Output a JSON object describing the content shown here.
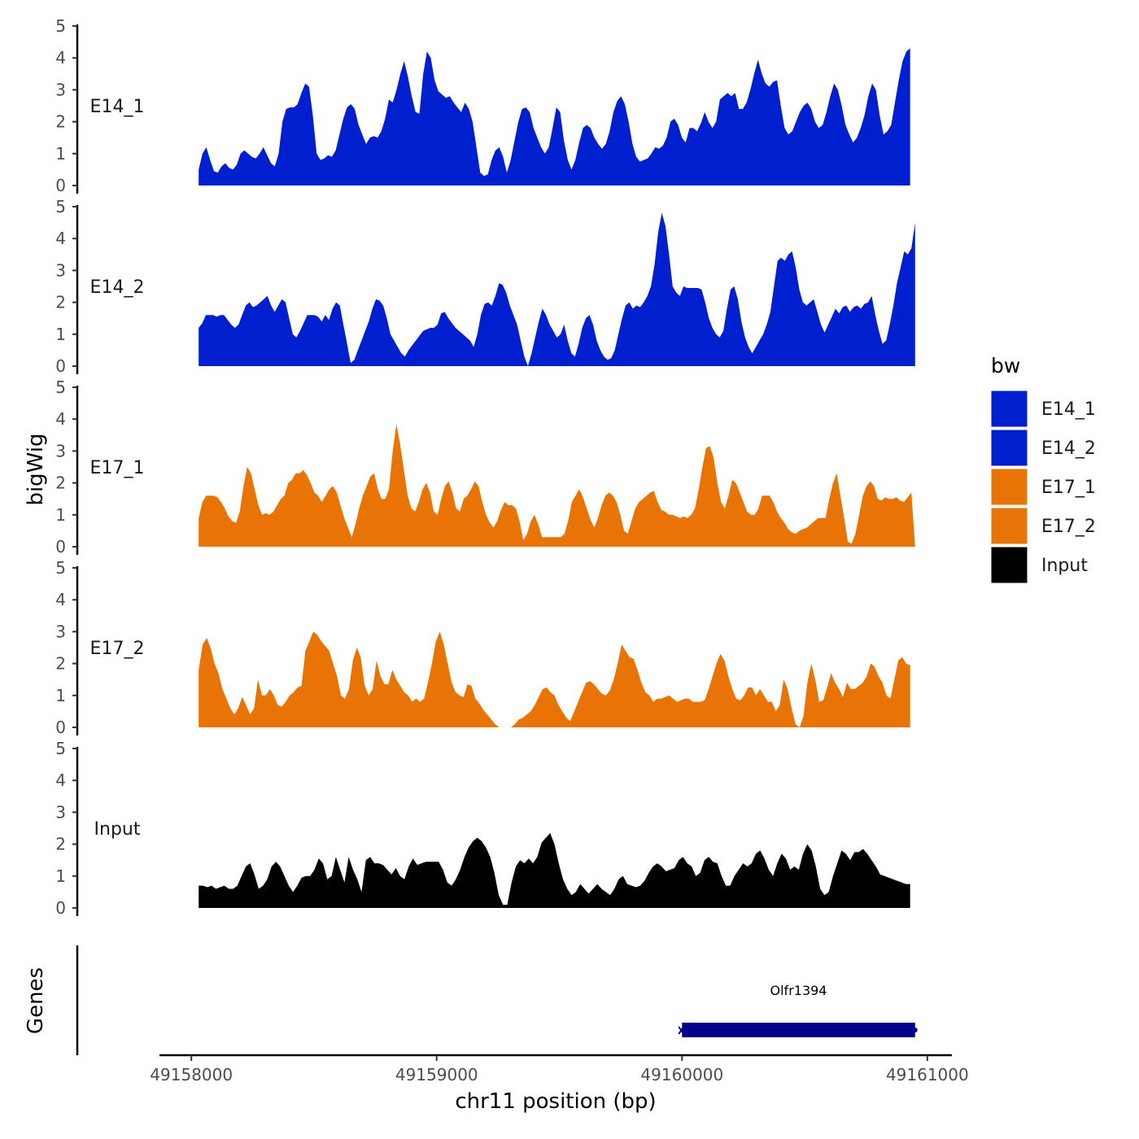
{
  "chart_data": {
    "type": "area",
    "title": "",
    "ylabel": "bigWig",
    "xlabel": "chr11 position (bp)",
    "xlim": [
      49157870,
      49161100
    ],
    "ylim": [
      0,
      5
    ],
    "x_ticks": [
      49158000,
      49159000,
      49160000,
      49161000
    ],
    "x_tick_labels": [
      "49158000",
      "49159000",
      "49160000",
      "49161000"
    ],
    "y_ticks": [
      0,
      1,
      2,
      3,
      4,
      5
    ],
    "y_tick_labels": [
      "0",
      "1",
      "2",
      "3",
      "4",
      "5"
    ],
    "legend": {
      "title": "bw",
      "position": "right",
      "entries": [
        {
          "name": "E14_1",
          "color": "#0020D0"
        },
        {
          "name": "E14_2",
          "color": "#0020D0"
        },
        {
          "name": "E17_1",
          "color": "#E87405"
        },
        {
          "name": "E17_2",
          "color": "#E87405"
        },
        {
          "name": "Input",
          "color": "#000000"
        }
      ]
    },
    "series": [
      {
        "name": "E14_1",
        "color": "#0020D0",
        "x_start": 49158030,
        "x_end": 49160930,
        "values": [
          0.5,
          1.0,
          1.2,
          0.8,
          0.45,
          0.4,
          0.6,
          0.7,
          0.55,
          0.5,
          0.65,
          1.0,
          1.1,
          1.0,
          0.9,
          0.85,
          1.0,
          1.2,
          0.95,
          0.7,
          0.6,
          1.0,
          2.0,
          2.4,
          2.45,
          2.45,
          2.55,
          2.9,
          3.2,
          3.1,
          2.2,
          1.0,
          0.8,
          0.85,
          0.95,
          0.9,
          1.1,
          1.6,
          2.1,
          2.45,
          2.55,
          2.4,
          1.9,
          1.6,
          1.3,
          1.5,
          1.55,
          1.5,
          1.7,
          2.1,
          2.7,
          2.6,
          3.0,
          3.5,
          3.9,
          3.4,
          2.8,
          2.3,
          2.25,
          3.5,
          4.2,
          4.0,
          3.3,
          2.95,
          2.85,
          2.75,
          2.8,
          2.6,
          2.45,
          2.3,
          2.6,
          2.4,
          2.0,
          1.2,
          0.4,
          0.3,
          0.35,
          0.8,
          1.1,
          1.2,
          0.9,
          0.4,
          0.8,
          1.4,
          2.0,
          2.4,
          2.45,
          2.3,
          1.8,
          1.5,
          1.2,
          1.0,
          1.2,
          1.8,
          2.45,
          2.3,
          1.4,
          0.8,
          0.5,
          0.8,
          1.35,
          1.8,
          1.9,
          1.8,
          1.5,
          1.3,
          1.15,
          1.3,
          1.7,
          2.3,
          2.65,
          2.8,
          2.55,
          2.0,
          1.3,
          0.9,
          0.75,
          0.8,
          0.85,
          1.0,
          1.2,
          1.15,
          1.25,
          1.5,
          2.0,
          2.1,
          1.9,
          1.5,
          1.35,
          1.8,
          1.8,
          1.7,
          1.95,
          2.3,
          2.0,
          1.8,
          2.0,
          2.7,
          2.8,
          2.9,
          2.8,
          2.9,
          2.4,
          2.4,
          2.6,
          3.0,
          3.5,
          3.95,
          3.5,
          3.2,
          3.1,
          3.25,
          3.3,
          2.5,
          1.8,
          1.6,
          1.7,
          2.0,
          2.3,
          2.5,
          2.6,
          2.4,
          2.0,
          1.8,
          1.9,
          2.3,
          2.8,
          3.2,
          3.0,
          2.5,
          1.9,
          1.6,
          1.35,
          1.5,
          1.8,
          2.2,
          2.8,
          3.2,
          3.0,
          2.2,
          1.6,
          1.7,
          1.9,
          2.6,
          3.3,
          3.9,
          4.2,
          4.3
        ]
      },
      {
        "name": "E14_2",
        "color": "#0020D0",
        "x_start": 49158030,
        "x_end": 49160950,
        "values": [
          1.2,
          1.35,
          1.6,
          1.6,
          1.6,
          1.55,
          1.6,
          1.6,
          1.45,
          1.3,
          1.2,
          1.3,
          1.6,
          1.9,
          2.0,
          1.85,
          1.9,
          2.0,
          2.1,
          2.2,
          1.9,
          1.7,
          1.9,
          2.1,
          2.0,
          1.5,
          1.0,
          0.9,
          1.1,
          1.35,
          1.6,
          1.6,
          1.6,
          1.55,
          1.4,
          1.6,
          1.45,
          1.8,
          2.0,
          1.9,
          1.3,
          0.7,
          0.1,
          0.2,
          0.5,
          0.8,
          1.1,
          1.4,
          1.8,
          2.1,
          2.05,
          1.9,
          1.5,
          1.0,
          0.8,
          0.6,
          0.4,
          0.3,
          0.5,
          0.65,
          0.8,
          0.95,
          1.1,
          1.15,
          1.2,
          1.2,
          1.3,
          1.65,
          1.7,
          1.5,
          1.35,
          1.2,
          1.1,
          1.0,
          0.9,
          0.8,
          0.6,
          1.0,
          1.6,
          1.95,
          2.0,
          1.9,
          2.2,
          2.6,
          2.55,
          2.3,
          1.9,
          1.6,
          1.3,
          0.8,
          0.3,
          0.0,
          0.4,
          0.9,
          1.4,
          1.8,
          1.6,
          1.3,
          1.1,
          0.9,
          1.0,
          1.3,
          0.8,
          0.4,
          0.3,
          0.7,
          1.2,
          1.5,
          1.6,
          1.3,
          0.8,
          0.5,
          0.3,
          0.2,
          0.25,
          0.5,
          1.0,
          1.5,
          1.9,
          2.0,
          1.8,
          1.9,
          1.85,
          2.0,
          2.2,
          2.5,
          3.2,
          4.2,
          4.8,
          4.4,
          3.5,
          2.5,
          2.3,
          2.2,
          2.5,
          2.45,
          2.45,
          2.45,
          2.45,
          2.4,
          2.0,
          1.5,
          1.2,
          1.0,
          0.9,
          1.1,
          1.8,
          2.4,
          2.5,
          2.1,
          1.4,
          0.9,
          0.6,
          0.4,
          0.6,
          0.8,
          1.0,
          1.3,
          1.7,
          2.5,
          3.3,
          3.4,
          3.3,
          3.5,
          3.6,
          3.1,
          2.4,
          2.0,
          1.9,
          2.0,
          2.1,
          1.7,
          1.3,
          1.05,
          1.3,
          1.55,
          1.8,
          1.65,
          1.85,
          1.9,
          1.7,
          1.85,
          1.9,
          1.8,
          1.95,
          2.0,
          2.2,
          1.6,
          1.1,
          0.7,
          0.8,
          1.3,
          1.9,
          2.6,
          3.1,
          3.6,
          3.5,
          3.7,
          4.5
        ]
      },
      {
        "name": "E17_1",
        "color": "#E87405",
        "x_start": 49158030,
        "x_end": 49160950,
        "values": [
          0.9,
          1.4,
          1.6,
          1.6,
          1.6,
          1.55,
          1.4,
          1.2,
          0.95,
          0.8,
          0.75,
          1.1,
          1.9,
          2.5,
          2.3,
          1.8,
          1.3,
          1.0,
          1.05,
          1.0,
          1.1,
          1.3,
          1.5,
          1.6,
          2.0,
          2.1,
          2.3,
          2.3,
          2.4,
          2.25,
          2.0,
          1.7,
          1.6,
          1.4,
          1.6,
          1.8,
          1.9,
          1.7,
          1.3,
          0.9,
          0.6,
          0.3,
          0.7,
          1.2,
          1.6,
          1.9,
          2.2,
          2.3,
          1.8,
          1.5,
          1.5,
          1.8,
          3.0,
          3.85,
          3.2,
          2.4,
          1.6,
          1.2,
          1.1,
          1.4,
          1.8,
          2.0,
          1.7,
          1.1,
          1.0,
          1.5,
          1.9,
          2.05,
          1.7,
          1.2,
          1.1,
          1.5,
          1.6,
          1.8,
          2.05,
          1.9,
          1.4,
          1.0,
          0.75,
          0.6,
          0.8,
          1.15,
          1.4,
          1.3,
          1.3,
          1.2,
          0.8,
          0.2,
          0.4,
          0.8,
          1.0,
          0.7,
          0.3,
          0.3,
          0.3,
          0.3,
          0.3,
          0.3,
          0.4,
          0.8,
          1.4,
          1.6,
          1.8,
          1.55,
          1.2,
          0.85,
          0.6,
          0.9,
          1.3,
          1.6,
          1.7,
          1.6,
          1.4,
          1.0,
          0.5,
          0.4,
          0.8,
          1.2,
          1.4,
          1.5,
          1.6,
          1.7,
          1.75,
          1.4,
          1.15,
          1.1,
          1.0,
          1.0,
          0.95,
          0.9,
          0.95,
          0.9,
          1.0,
          1.2,
          1.8,
          2.5,
          3.1,
          3.15,
          2.8,
          2.0,
          1.4,
          1.2,
          1.6,
          2.1,
          2.0,
          1.7,
          1.4,
          1.1,
          1.0,
          1.0,
          1.2,
          1.6,
          1.6,
          1.6,
          1.4,
          1.1,
          0.9,
          0.75,
          0.55,
          0.45,
          0.4,
          0.5,
          0.55,
          0.6,
          0.7,
          0.8,
          0.9,
          0.9,
          0.9,
          1.5,
          2.0,
          2.3,
          1.6,
          0.9,
          0.15,
          0.1,
          0.4,
          1.0,
          1.6,
          1.9,
          2.05,
          1.9,
          1.5,
          1.45,
          1.55,
          1.5,
          1.5,
          1.55,
          1.45,
          1.4,
          1.55,
          1.7,
          0.0
        ]
      },
      {
        "name": "E17_2",
        "color": "#E87405",
        "x_start": 49158030,
        "x_end": 49160930,
        "values": [
          1.8,
          2.6,
          2.8,
          2.5,
          2.0,
          1.7,
          1.2,
          0.9,
          0.6,
          0.4,
          0.6,
          0.95,
          0.7,
          0.4,
          0.6,
          1.5,
          1.0,
          1.0,
          1.2,
          1.0,
          0.7,
          0.65,
          0.8,
          1.0,
          1.1,
          1.25,
          1.3,
          2.4,
          2.7,
          3.0,
          2.9,
          2.7,
          2.55,
          2.4,
          2.0,
          1.6,
          1.0,
          0.9,
          1.2,
          2.1,
          2.5,
          2.2,
          1.3,
          1.0,
          1.2,
          2.1,
          1.6,
          1.35,
          1.35,
          1.8,
          1.5,
          1.3,
          1.1,
          1.0,
          0.8,
          0.9,
          0.8,
          0.9,
          1.4,
          2.0,
          2.7,
          3.0,
          2.6,
          2.0,
          1.4,
          1.1,
          1.0,
          0.95,
          1.35,
          1.3,
          0.9,
          0.75,
          0.55,
          0.4,
          0.25,
          0.1,
          0.0,
          0.0,
          0.0,
          0.0,
          0.1,
          0.25,
          0.3,
          0.4,
          0.5,
          0.7,
          0.95,
          1.2,
          1.25,
          1.1,
          1.0,
          0.7,
          0.5,
          0.3,
          0.2,
          0.5,
          0.8,
          1.1,
          1.4,
          1.45,
          1.35,
          1.2,
          1.05,
          1.0,
          1.15,
          1.5,
          2.0,
          2.6,
          2.4,
          2.2,
          2.15,
          1.8,
          1.4,
          1.1,
          1.0,
          0.8,
          0.9,
          0.9,
          0.95,
          1.0,
          0.9,
          0.8,
          0.85,
          0.9,
          0.9,
          0.8,
          0.8,
          0.8,
          0.85,
          1.2,
          1.6,
          2.0,
          2.3,
          2.1,
          1.6,
          1.2,
          0.9,
          0.85,
          1.0,
          1.25,
          1.25,
          1.0,
          1.2,
          1.0,
          0.8,
          0.8,
          0.5,
          0.7,
          1.5,
          1.2,
          0.6,
          0.1,
          0.0,
          0.35,
          1.4,
          2.0,
          1.5,
          0.8,
          0.85,
          1.25,
          1.7,
          1.4,
          1.2,
          0.95,
          1.4,
          1.2,
          1.2,
          1.3,
          1.4,
          1.6,
          2.0,
          1.9,
          1.6,
          1.4,
          1.0,
          0.9,
          1.5,
          2.1,
          2.2,
          2.0,
          1.95
        ]
      },
      {
        "name": "Input",
        "color": "#000000",
        "x_start": 49158030,
        "x_end": 49160930,
        "values": [
          0.7,
          0.7,
          0.65,
          0.7,
          0.6,
          0.65,
          0.7,
          0.6,
          0.6,
          0.7,
          1.0,
          1.3,
          1.4,
          1.05,
          0.6,
          0.7,
          0.9,
          1.3,
          1.45,
          1.3,
          1.0,
          0.7,
          0.5,
          0.7,
          0.95,
          1.0,
          1.0,
          1.2,
          1.55,
          1.4,
          0.9,
          1.0,
          1.6,
          1.2,
          0.8,
          1.6,
          1.2,
          0.9,
          0.5,
          1.5,
          1.6,
          1.4,
          1.4,
          1.35,
          1.2,
          1.05,
          1.25,
          1.0,
          0.9,
          1.3,
          1.55,
          1.35,
          1.4,
          1.45,
          1.45,
          1.45,
          1.45,
          1.2,
          0.8,
          0.7,
          0.9,
          1.2,
          1.6,
          1.9,
          2.1,
          2.2,
          2.1,
          1.9,
          1.6,
          1.1,
          0.4,
          0.1,
          0.1,
          0.8,
          1.3,
          1.5,
          1.4,
          1.55,
          1.4,
          1.6,
          2.05,
          2.2,
          2.35,
          2.0,
          1.4,
          0.9,
          0.6,
          0.4,
          0.5,
          0.75,
          0.6,
          0.45,
          0.6,
          0.75,
          0.6,
          0.5,
          0.4,
          0.6,
          0.9,
          1.0,
          0.75,
          0.7,
          0.65,
          0.7,
          0.85,
          1.1,
          1.3,
          1.4,
          1.3,
          1.15,
          1.2,
          1.25,
          1.5,
          1.6,
          1.4,
          1.3,
          1.0,
          1.1,
          1.5,
          1.6,
          1.45,
          1.4,
          1.0,
          0.7,
          0.7,
          1.0,
          1.2,
          1.4,
          1.3,
          1.4,
          1.7,
          1.8,
          1.55,
          1.2,
          1.0,
          1.4,
          1.7,
          1.55,
          1.2,
          1.3,
          1.2,
          1.7,
          2.0,
          1.8,
          1.3,
          0.6,
          0.4,
          0.5,
          1.0,
          1.4,
          1.8,
          1.7,
          1.5,
          1.75,
          1.75,
          1.85,
          1.7,
          1.5,
          1.3,
          1.05,
          1.0,
          0.95,
          0.9,
          0.85,
          0.8,
          0.75,
          0.75
        ]
      }
    ],
    "genes": {
      "track_title": "Genes",
      "items": [
        {
          "name": "Olfr1394",
          "start": 49160000,
          "end": 49160950,
          "strand": "-",
          "color": "#00008B"
        }
      ]
    }
  }
}
